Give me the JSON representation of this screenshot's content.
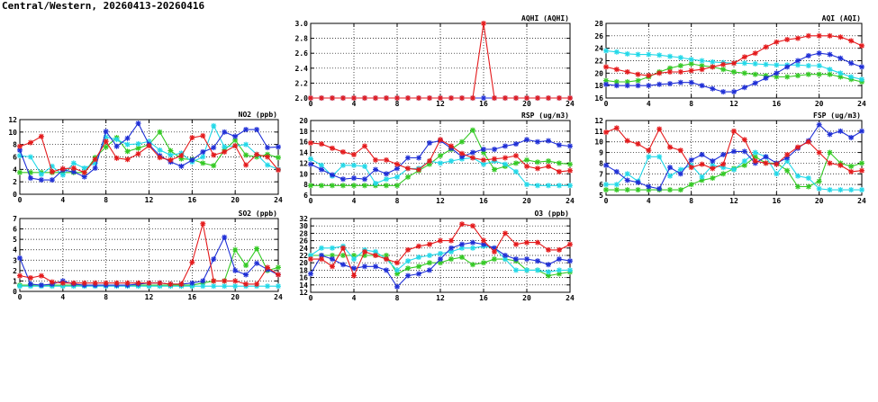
{
  "page": {
    "title": "Central/Western, 20260413-20260416"
  },
  "colors": {
    "red": "#e41a1c",
    "blue": "#1f2fd6",
    "cyan": "#22d8e8",
    "green": "#34c924"
  },
  "chart_data": [
    {
      "id": "aqhi",
      "type": "line",
      "title": "AQHI (AQHI)",
      "x": [
        0,
        1,
        2,
        3,
        4,
        5,
        6,
        7,
        8,
        9,
        10,
        11,
        12,
        13,
        14,
        15,
        16,
        17,
        18,
        19,
        20,
        21,
        22,
        23,
        24
      ],
      "xticks": [
        0,
        4,
        8,
        12,
        16,
        20,
        24
      ],
      "xlim": [
        0,
        24
      ],
      "ylim": [
        2.0,
        3.0
      ],
      "yticks": [
        2.0,
        2.2,
        2.4,
        2.6,
        2.8,
        3.0
      ],
      "yprecision": 1,
      "series": [
        {
          "color": "#e41a1c",
          "marker": "asterisk",
          "values": [
            2,
            2,
            2,
            2,
            2,
            2,
            2,
            2,
            2,
            2,
            2,
            2,
            2,
            2,
            2,
            2,
            3,
            2,
            2,
            2,
            2,
            2,
            2,
            2,
            2
          ]
        },
        {
          "color": "#1f2fd6",
          "marker": "asterisk",
          "values": [
            2,
            2,
            2,
            2,
            2,
            2,
            2,
            2,
            2,
            2,
            2,
            2,
            2,
            2,
            2,
            2,
            2,
            2,
            2,
            2,
            2,
            2,
            2,
            2,
            2
          ]
        }
      ]
    },
    {
      "id": "aqi",
      "type": "line",
      "title": "AQI (AQI)",
      "x": [
        0,
        1,
        2,
        3,
        4,
        5,
        6,
        7,
        8,
        9,
        10,
        11,
        12,
        13,
        14,
        15,
        16,
        17,
        18,
        19,
        20,
        21,
        22,
        23,
        24
      ],
      "xticks": [
        0,
        4,
        8,
        12,
        16,
        20,
        24
      ],
      "xlim": [
        0,
        24
      ],
      "ylim": [
        16,
        28
      ],
      "yticks": [
        16,
        18,
        20,
        22,
        24,
        26,
        28
      ],
      "yprecision": 0,
      "series": [
        {
          "color": "#e41a1c",
          "marker": "asterisk",
          "values": [
            21,
            20.6,
            20.2,
            19.8,
            19.6,
            20,
            20.2,
            20.2,
            20.4,
            20.6,
            21,
            21.4,
            21.6,
            22.6,
            23.2,
            24.2,
            25,
            25.4,
            25.6,
            26,
            26,
            26,
            25.8,
            25.2,
            24.4
          ]
        },
        {
          "color": "#1f2fd6",
          "marker": "asterisk",
          "values": [
            18.2,
            18,
            18,
            18,
            18,
            18.2,
            18.3,
            18.5,
            18.5,
            18,
            17.5,
            17,
            17,
            17.7,
            18.4,
            19.2,
            20,
            21,
            22,
            22.8,
            23.2,
            23,
            22.4,
            21.6,
            21
          ]
        },
        {
          "color": "#22d8e8",
          "marker": "asterisk",
          "values": [
            23.6,
            23.4,
            23.1,
            23,
            23,
            22.9,
            22.7,
            22.5,
            22.2,
            22,
            21.8,
            21.7,
            21.6,
            21.6,
            21.5,
            21.4,
            21.3,
            21.3,
            21.3,
            21.2,
            21.2,
            20.6,
            20,
            19.4,
            19
          ]
        },
        {
          "color": "#34c924",
          "marker": "asterisk",
          "values": [
            18.8,
            18.6,
            18.6,
            18.8,
            19.4,
            20.2,
            20.8,
            21.2,
            21.5,
            21.2,
            21,
            20.6,
            20.2,
            20,
            19.8,
            19.6,
            19.4,
            19.4,
            19.6,
            19.8,
            19.8,
            19.8,
            19.4,
            19,
            18.6
          ]
        }
      ]
    },
    {
      "id": "no2",
      "type": "line",
      "title": "NO2 (ppb)",
      "x": [
        0,
        1,
        2,
        3,
        4,
        5,
        6,
        7,
        8,
        9,
        10,
        11,
        12,
        13,
        14,
        15,
        16,
        17,
        18,
        19,
        20,
        21,
        22,
        23,
        24
      ],
      "xticks": [
        0,
        4,
        8,
        12,
        16,
        20,
        24
      ],
      "xlim": [
        0,
        24
      ],
      "ylim": [
        0,
        12
      ],
      "yticks": [
        0,
        2,
        4,
        6,
        8,
        10,
        12
      ],
      "yprecision": 0,
      "series": [
        {
          "color": "#e41a1c",
          "marker": "asterisk",
          "values": [
            7.7,
            8.3,
            9.3,
            3.6,
            4.1,
            4.2,
            3.5,
            5.6,
            8.5,
            5.8,
            5.6,
            6.5,
            7.8,
            5.9,
            5.5,
            6.2,
            9.1,
            9.4,
            6.3,
            6.8,
            7.8,
            4.7,
            6.4,
            6.0,
            3.9
          ]
        },
        {
          "color": "#1f2fd6",
          "marker": "asterisk",
          "values": [
            7.1,
            2.6,
            2.3,
            2.3,
            3.9,
            3.6,
            2.8,
            4.2,
            10.1,
            7.7,
            9.0,
            11.4,
            8.0,
            6.2,
            5.2,
            4.5,
            5.5,
            6.8,
            7.5,
            10.0,
            9.3,
            10.4,
            10.4,
            7.5,
            7.6
          ]
        },
        {
          "color": "#22d8e8",
          "marker": "asterisk",
          "values": [
            6.2,
            6.0,
            3.2,
            4.5,
            3.1,
            5.0,
            4.2,
            5.0,
            9.2,
            8.8,
            8.0,
            8.1,
            8.5,
            7.1,
            6.3,
            6.6,
            5.2,
            6.0,
            11.0,
            7.6,
            7.8,
            8.0,
            6.4,
            4.7,
            4.0
          ]
        },
        {
          "color": "#34c924",
          "marker": "asterisk",
          "values": [
            3.5,
            3.5,
            3.5,
            3.5,
            3.5,
            3.5,
            3.5,
            5.9,
            7.6,
            9.1,
            6.9,
            7.4,
            8.0,
            10.0,
            7.0,
            5.7,
            5.6,
            5.0,
            4.6,
            7.1,
            8.7,
            6.3,
            6.0,
            6.4,
            5.9
          ]
        }
      ]
    },
    {
      "id": "rsp",
      "type": "line",
      "title": "RSP (ug/m3)",
      "x": [
        0,
        1,
        2,
        3,
        4,
        5,
        6,
        7,
        8,
        9,
        10,
        11,
        12,
        13,
        14,
        15,
        16,
        17,
        18,
        19,
        20,
        21,
        22,
        23,
        24
      ],
      "xticks": [
        0,
        4,
        8,
        12,
        16,
        20,
        24
      ],
      "xlim": [
        0,
        24
      ],
      "ylim": [
        6,
        20
      ],
      "yticks": [
        6,
        8,
        10,
        12,
        14,
        16,
        18,
        20
      ],
      "yprecision": 0,
      "series": [
        {
          "color": "#e41a1c",
          "marker": "asterisk",
          "values": [
            15.8,
            15.6,
            14.8,
            14.1,
            13.6,
            15.2,
            12.6,
            12.6,
            11.8,
            11.0,
            10.8,
            12.4,
            16.4,
            15.2,
            13.8,
            13.0,
            12.6,
            12.8,
            13.0,
            13.4,
            11.4,
            11.0,
            11.4,
            10.4,
            10.6
          ]
        },
        {
          "color": "#1f2fd6",
          "marker": "asterisk",
          "values": [
            11.8,
            10.8,
            9.8,
            9.0,
            9.2,
            9.0,
            10.8,
            10.0,
            11.0,
            13.0,
            13.0,
            15.8,
            16.2,
            14.8,
            13.2,
            14.0,
            14.6,
            14.6,
            15.2,
            15.6,
            16.4,
            16.0,
            16.2,
            15.4,
            15.2
          ]
        },
        {
          "color": "#22d8e8",
          "marker": "asterisk",
          "values": [
            12.8,
            11.6,
            9.6,
            11.6,
            11.6,
            11.4,
            8.2,
            9.0,
            9.4,
            11.0,
            11.0,
            12.4,
            12.0,
            12.4,
            12.8,
            13.0,
            11.8,
            12.4,
            11.8,
            10.4,
            8.0,
            7.8,
            7.8,
            7.8,
            7.8
          ]
        },
        {
          "color": "#34c924",
          "marker": "asterisk",
          "values": [
            7.8,
            7.8,
            7.8,
            7.8,
            7.8,
            7.8,
            7.8,
            7.8,
            7.8,
            9.4,
            10.6,
            11.8,
            13.4,
            14.6,
            16.0,
            18.2,
            14.0,
            10.8,
            11.4,
            12.0,
            12.6,
            12.2,
            12.4,
            12.0,
            11.8
          ]
        }
      ]
    },
    {
      "id": "fsp",
      "type": "line",
      "title": "FSP (ug/m3)",
      "x": [
        0,
        1,
        2,
        3,
        4,
        5,
        6,
        7,
        8,
        9,
        10,
        11,
        12,
        13,
        14,
        15,
        16,
        17,
        18,
        19,
        20,
        21,
        22,
        23,
        24
      ],
      "xticks": [
        0,
        4,
        8,
        12,
        16,
        20,
        24
      ],
      "xlim": [
        0,
        24
      ],
      "ylim": [
        5,
        12
      ],
      "yticks": [
        5,
        6,
        7,
        8,
        9,
        10,
        11,
        12
      ],
      "yprecision": 0,
      "series": [
        {
          "color": "#e41a1c",
          "marker": "asterisk",
          "values": [
            10.9,
            11.3,
            10.1,
            9.8,
            9.2,
            11.2,
            9.5,
            9.2,
            7.6,
            7.9,
            7.5,
            7.9,
            11.0,
            10.2,
            8.2,
            8.0,
            7.9,
            8.8,
            9.5,
            10.0,
            9.0,
            8.0,
            7.8,
            7.2,
            7.3
          ]
        },
        {
          "color": "#1f2fd6",
          "marker": "asterisk",
          "values": [
            7.8,
            7.2,
            6.4,
            6.2,
            5.8,
            5.6,
            7.6,
            7.0,
            8.3,
            8.8,
            8.2,
            8.8,
            9.1,
            9.1,
            8.0,
            8.6,
            8.0,
            8.5,
            9.4,
            10.1,
            11.6,
            10.7,
            11.0,
            10.4,
            11.0
          ]
        },
        {
          "color": "#22d8e8",
          "marker": "asterisk",
          "values": [
            6.0,
            6.0,
            7.0,
            6.3,
            8.6,
            8.6,
            6.8,
            7.4,
            7.8,
            6.7,
            7.8,
            7.6,
            7.4,
            8.2,
            9.0,
            8.6,
            7.0,
            8.2,
            6.8,
            6.6,
            5.6,
            5.5,
            5.5,
            5.5,
            5.5
          ]
        },
        {
          "color": "#34c924",
          "marker": "asterisk",
          "values": [
            5.5,
            5.5,
            5.5,
            5.5,
            5.5,
            5.5,
            5.5,
            5.5,
            6.0,
            6.4,
            6.6,
            7.0,
            7.5,
            7.8,
            8.6,
            8.0,
            8.0,
            7.3,
            5.8,
            5.8,
            6.3,
            9.0,
            8.0,
            7.7,
            8.0
          ]
        }
      ]
    },
    {
      "id": "so2",
      "type": "line",
      "title": "SO2 (ppb)",
      "x": [
        0,
        1,
        2,
        3,
        4,
        5,
        6,
        7,
        8,
        9,
        10,
        11,
        12,
        13,
        14,
        15,
        16,
        17,
        18,
        19,
        20,
        21,
        22,
        23,
        24
      ],
      "xticks": [
        0,
        4,
        8,
        12,
        16,
        20,
        24
      ],
      "xlim": [
        0,
        24
      ],
      "ylim": [
        0,
        7
      ],
      "yticks": [
        0,
        1,
        2,
        3,
        4,
        5,
        6,
        7
      ],
      "yprecision": 0,
      "series": [
        {
          "color": "#e41a1c",
          "marker": "asterisk",
          "values": [
            1.5,
            1.3,
            1.5,
            0.9,
            0.8,
            0.8,
            0.8,
            0.8,
            0.8,
            0.8,
            0.8,
            0.8,
            0.8,
            0.8,
            0.7,
            0.7,
            2.8,
            6.5,
            1.0,
            1.0,
            1.0,
            0.7,
            0.7,
            2.3,
            1.6
          ]
        },
        {
          "color": "#1f2fd6",
          "marker": "asterisk",
          "values": [
            3.2,
            0.7,
            0.6,
            0.7,
            1.0,
            0.7,
            0.6,
            0.6,
            0.6,
            0.6,
            0.6,
            0.7,
            0.8,
            0.8,
            0.7,
            0.7,
            0.8,
            1.0,
            3.1,
            5.2,
            2.0,
            1.6,
            2.7,
            2.1,
            1.6
          ]
        },
        {
          "color": "#22d8e8",
          "marker": "asterisk",
          "values": [
            0.5,
            0.5,
            0.5,
            0.5,
            0.5,
            0.5,
            0.5,
            0.5,
            0.5,
            0.5,
            0.5,
            0.5,
            0.5,
            0.5,
            0.5,
            0.5,
            0.5,
            0.5,
            0.5,
            0.5,
            0.5,
            0.5,
            0.5,
            0.5,
            0.5
          ]
        },
        {
          "color": "#34c924",
          "marker": "asterisk",
          "values": [
            0.6,
            0.6,
            0.6,
            0.6,
            0.6,
            0.6,
            0.6,
            0.6,
            0.6,
            0.6,
            0.6,
            0.6,
            0.6,
            0.6,
            0.6,
            0.6,
            0.6,
            0.8,
            1.0,
            1.0,
            4.0,
            2.5,
            4.1,
            2.0,
            2.3
          ]
        }
      ]
    },
    {
      "id": "o3",
      "type": "line",
      "title": "O3 (ppb)",
      "x": [
        0,
        1,
        2,
        3,
        4,
        5,
        6,
        7,
        8,
        9,
        10,
        11,
        12,
        13,
        14,
        15,
        16,
        17,
        18,
        19,
        20,
        21,
        22,
        23,
        24
      ],
      "xticks": [
        0,
        4,
        8,
        12,
        16,
        20,
        24
      ],
      "xlim": [
        0,
        24
      ],
      "ylim": [
        12,
        32
      ],
      "yticks": [
        12,
        14,
        16,
        18,
        20,
        22,
        24,
        26,
        28,
        30,
        32
      ],
      "yprecision": 0,
      "series": [
        {
          "color": "#e41a1c",
          "marker": "asterisk",
          "values": [
            21,
            21,
            19,
            24,
            16.5,
            23,
            22,
            21,
            20,
            23.5,
            24.5,
            25,
            26,
            26,
            30.5,
            30,
            26,
            23,
            28,
            25,
            25.5,
            25.5,
            23.5,
            23.5,
            25
          ]
        },
        {
          "color": "#1f2fd6",
          "marker": "asterisk",
          "values": [
            17,
            22,
            21,
            19.5,
            18.5,
            19,
            19,
            18,
            13.5,
            16.5,
            17,
            18,
            21,
            24,
            25,
            25.5,
            25,
            24,
            22,
            21,
            21,
            20.5,
            19.5,
            21,
            20.5
          ]
        },
        {
          "color": "#22d8e8",
          "marker": "asterisk",
          "values": [
            22,
            24,
            24,
            24.5,
            21,
            23.5,
            23,
            21,
            18,
            20.5,
            21.5,
            22,
            22.5,
            23,
            24,
            24,
            24.5,
            24,
            21,
            18,
            18,
            18,
            17.5,
            18,
            18
          ]
        },
        {
          "color": "#34c924",
          "marker": "asterisk",
          "values": [
            22,
            22,
            22,
            22,
            22,
            22,
            22,
            22,
            17,
            18.5,
            19,
            20,
            20,
            21,
            21.5,
            19.5,
            20,
            21,
            21,
            20.5,
            18,
            18,
            16.5,
            17,
            17.5
          ]
        }
      ]
    }
  ]
}
